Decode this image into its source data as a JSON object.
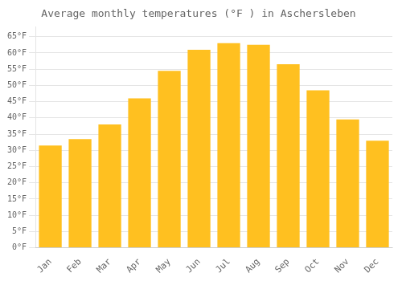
{
  "chart_data": {
    "type": "bar",
    "title": "Average monthly temperatures (°F ) in Aschersleben",
    "categories": [
      "Jan",
      "Feb",
      "Mar",
      "Apr",
      "May",
      "Jun",
      "Jul",
      "Aug",
      "Sep",
      "Oct",
      "Nov",
      "Dec"
    ],
    "values": [
      31.5,
      33.5,
      38.0,
      46.0,
      54.5,
      61.0,
      63.0,
      62.5,
      56.5,
      48.5,
      39.5,
      33.0
    ],
    "color": "#FFC020",
    "ylim": [
      0,
      68
    ],
    "yticks": [
      {
        "value": 0,
        "label": "0°F"
      },
      {
        "value": 5,
        "label": "5°F"
      },
      {
        "value": 10,
        "label": "10°F"
      },
      {
        "value": 15,
        "label": "15°F"
      },
      {
        "value": 20,
        "label": "20°F"
      },
      {
        "value": 25,
        "label": "25°F"
      },
      {
        "value": 30,
        "label": "30°F"
      },
      {
        "value": 35,
        "label": "35°F"
      },
      {
        "value": 40,
        "label": "40°F"
      },
      {
        "value": 45,
        "label": "45°F"
      },
      {
        "value": 50,
        "label": "50°F"
      },
      {
        "value": 55,
        "label": "55°F"
      },
      {
        "value": 60,
        "label": "60°F"
      },
      {
        "value": 65,
        "label": "65°F"
      }
    ],
    "grid": true
  }
}
